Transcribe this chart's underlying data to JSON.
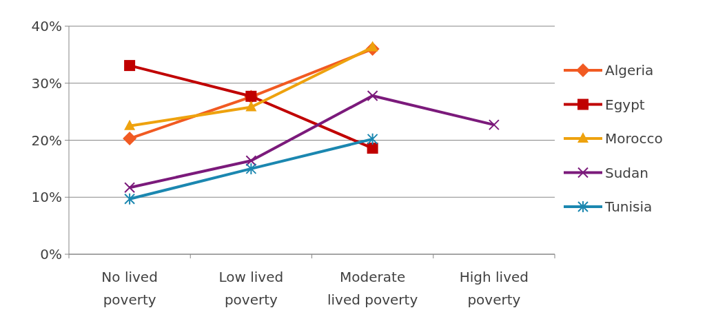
{
  "chart_data": {
    "type": "line",
    "categories": [
      "No lived poverty",
      "Low lived poverty",
      "Moderate lived poverty",
      "High lived poverty"
    ],
    "series": [
      {
        "name": "Algeria",
        "color": "#f15a22",
        "marker": "diamond",
        "values": [
          20.3,
          27.6,
          36.0,
          null
        ]
      },
      {
        "name": "Egypt",
        "color": "#c00000",
        "marker": "square",
        "values": [
          33.1,
          27.7,
          18.6,
          null
        ]
      },
      {
        "name": "Morocco",
        "color": "#eea20e",
        "marker": "triangle",
        "values": [
          22.5,
          25.8,
          36.3,
          null
        ]
      },
      {
        "name": "Sudan",
        "color": "#7b1a7b",
        "marker": "cross",
        "values": [
          11.7,
          16.4,
          27.8,
          22.7
        ]
      },
      {
        "name": "Tunisia",
        "color": "#1b87b0",
        "marker": "cross",
        "values": [
          9.7,
          15.0,
          20.2,
          null
        ]
      }
    ],
    "ylim": [
      0,
      40
    ],
    "yticks": [
      {
        "value": 0,
        "label": "0%"
      },
      {
        "value": 10,
        "label": "10%"
      },
      {
        "value": 20,
        "label": "20%"
      },
      {
        "value": 30,
        "label": "30%"
      },
      {
        "value": 40,
        "label": "40%"
      }
    ],
    "grid": "y",
    "legend": "right"
  }
}
